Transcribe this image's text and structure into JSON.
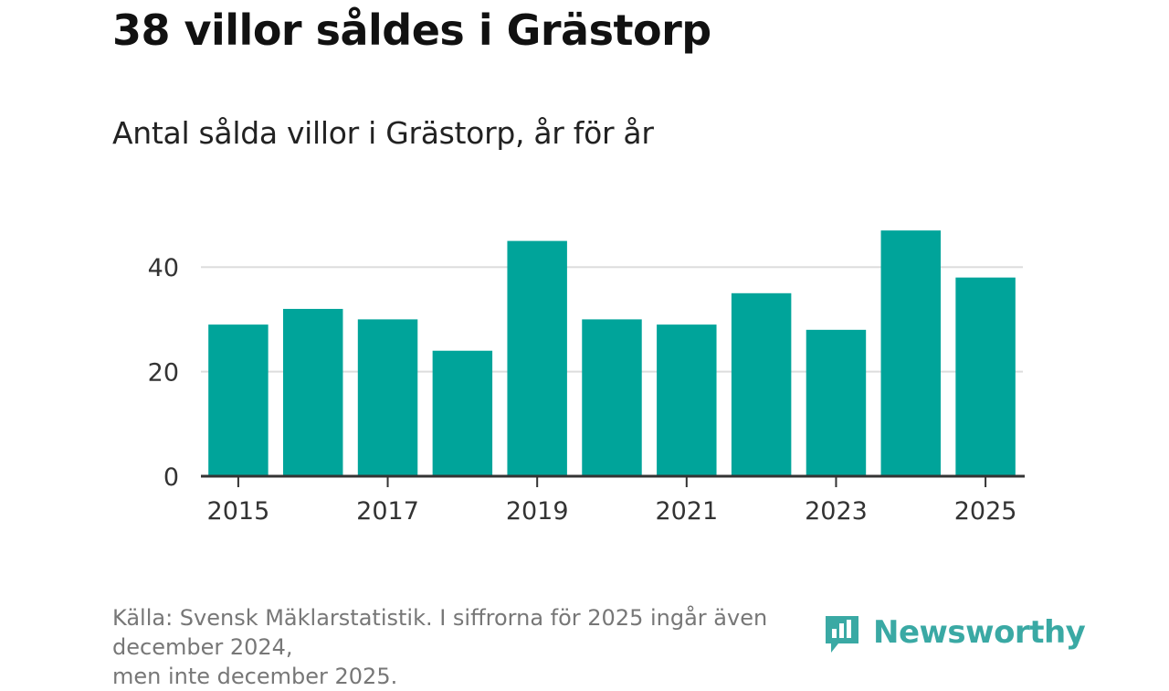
{
  "title": "38 villor såldes i Grästorp",
  "subtitle": "Antal sålda villor i Grästorp, år för år",
  "source_line1": "Källa: Svensk Mäklarstatistik. I siffrorna för 2025 ingår även december 2024,",
  "source_line2": "men inte december 2025.",
  "logo": {
    "text": "Newsworthy",
    "icon": "newsworthy-logo-icon"
  },
  "colors": {
    "bar": "#00a49a",
    "grid": "#dddddd",
    "axis": "#333333",
    "brand": "#3aa9a4"
  },
  "chart_data": {
    "type": "bar",
    "title": "Antal sålda villor i Grästorp, år för år",
    "xlabel": "",
    "ylabel": "",
    "categories": [
      "2015",
      "2016",
      "2017",
      "2018",
      "2019",
      "2020",
      "2021",
      "2022",
      "2023",
      "2024",
      "2025"
    ],
    "values": [
      29,
      32,
      30,
      24,
      45,
      30,
      29,
      35,
      28,
      47,
      38
    ],
    "x_tick_labels": [
      "2015",
      "2017",
      "2019",
      "2021",
      "2023",
      "2025"
    ],
    "y_ticks": [
      0,
      20,
      40
    ],
    "ylim": [
      0,
      50
    ],
    "grid": true,
    "legend": "none"
  }
}
